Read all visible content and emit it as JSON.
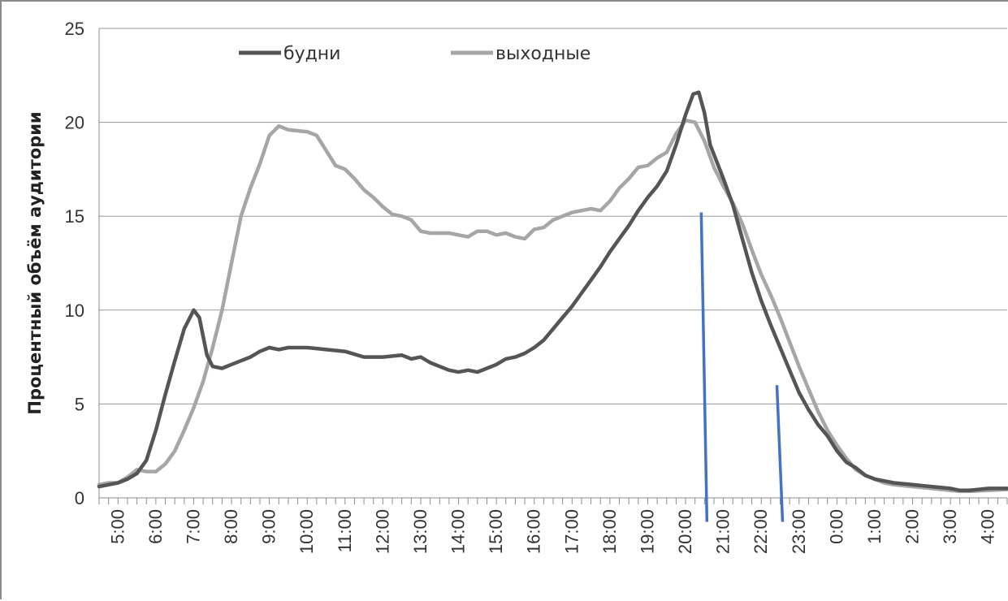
{
  "chart_data": {
    "type": "line",
    "title": "",
    "xlabel": "",
    "ylabel": "Процентный объём аудитории",
    "ylim": [
      0,
      25
    ],
    "yticks": [
      0,
      5,
      10,
      15,
      20,
      25
    ],
    "xlim": [
      5,
      29
    ],
    "xtick_labels": [
      "5:00",
      "6:00",
      "7:00",
      "8:00",
      "9:00",
      "10:00",
      "11:00",
      "12:00",
      "13:00",
      "14:00",
      "15:00",
      "16:00",
      "17:00",
      "18:00",
      "19:00",
      "20:00",
      "21:00",
      "22:00",
      "23:00",
      "0:00",
      "1:00",
      "2:00",
      "3:00",
      "4:00"
    ],
    "grid": "horizontal",
    "legend_position": "top-left",
    "series": [
      {
        "name": "будни",
        "color": "#555555",
        "points": [
          [
            5.0,
            0.6
          ],
          [
            5.25,
            0.7
          ],
          [
            5.5,
            0.8
          ],
          [
            5.75,
            1.0
          ],
          [
            6.0,
            1.3
          ],
          [
            6.25,
            2.0
          ],
          [
            6.5,
            3.6
          ],
          [
            6.75,
            5.5
          ],
          [
            7.0,
            7.3
          ],
          [
            7.25,
            9.0
          ],
          [
            7.5,
            10.0
          ],
          [
            7.65,
            9.6
          ],
          [
            7.85,
            7.6
          ],
          [
            8.0,
            7.0
          ],
          [
            8.25,
            6.9
          ],
          [
            8.5,
            7.1
          ],
          [
            8.75,
            7.3
          ],
          [
            9.0,
            7.5
          ],
          [
            9.25,
            7.8
          ],
          [
            9.5,
            8.0
          ],
          [
            9.75,
            7.9
          ],
          [
            10.0,
            8.0
          ],
          [
            10.5,
            8.0
          ],
          [
            11.0,
            7.9
          ],
          [
            11.5,
            7.8
          ],
          [
            12.0,
            7.5
          ],
          [
            12.5,
            7.5
          ],
          [
            13.0,
            7.6
          ],
          [
            13.25,
            7.4
          ],
          [
            13.5,
            7.5
          ],
          [
            13.75,
            7.2
          ],
          [
            14.0,
            7.0
          ],
          [
            14.25,
            6.8
          ],
          [
            14.5,
            6.7
          ],
          [
            14.75,
            6.8
          ],
          [
            15.0,
            6.7
          ],
          [
            15.25,
            6.9
          ],
          [
            15.5,
            7.1
          ],
          [
            15.75,
            7.4
          ],
          [
            16.0,
            7.5
          ],
          [
            16.25,
            7.7
          ],
          [
            16.5,
            8.0
          ],
          [
            16.75,
            8.4
          ],
          [
            17.0,
            9.0
          ],
          [
            17.25,
            9.6
          ],
          [
            17.5,
            10.2
          ],
          [
            17.75,
            10.9
          ],
          [
            18.0,
            11.6
          ],
          [
            18.25,
            12.3
          ],
          [
            18.5,
            13.1
          ],
          [
            18.75,
            13.8
          ],
          [
            19.0,
            14.5
          ],
          [
            19.25,
            15.3
          ],
          [
            19.5,
            16.0
          ],
          [
            19.75,
            16.6
          ],
          [
            20.0,
            17.4
          ],
          [
            20.25,
            18.8
          ],
          [
            20.5,
            20.4
          ],
          [
            20.7,
            21.5
          ],
          [
            20.85,
            21.6
          ],
          [
            21.0,
            20.5
          ],
          [
            21.15,
            18.8
          ],
          [
            21.5,
            17.0
          ],
          [
            21.75,
            15.6
          ],
          [
            22.0,
            13.8
          ],
          [
            22.25,
            12.0
          ],
          [
            22.5,
            10.5
          ],
          [
            22.75,
            9.2
          ],
          [
            23.0,
            8.0
          ],
          [
            23.25,
            6.8
          ],
          [
            23.5,
            5.6
          ],
          [
            23.75,
            4.7
          ],
          [
            24.0,
            3.9
          ],
          [
            24.25,
            3.3
          ],
          [
            24.5,
            2.5
          ],
          [
            24.75,
            1.9
          ],
          [
            25.0,
            1.6
          ],
          [
            25.25,
            1.2
          ],
          [
            25.5,
            1.0
          ],
          [
            25.75,
            0.9
          ],
          [
            26.0,
            0.8
          ],
          [
            26.5,
            0.7
          ],
          [
            27.0,
            0.6
          ],
          [
            27.5,
            0.5
          ],
          [
            27.75,
            0.4
          ],
          [
            28.0,
            0.4
          ],
          [
            28.25,
            0.45
          ],
          [
            28.5,
            0.5
          ],
          [
            29.0,
            0.5
          ]
        ]
      },
      {
        "name": "выходные",
        "color": "#a6a6a6",
        "points": [
          [
            5.0,
            0.7
          ],
          [
            5.25,
            0.8
          ],
          [
            5.5,
            0.8
          ],
          [
            5.75,
            1.1
          ],
          [
            6.0,
            1.5
          ],
          [
            6.25,
            1.4
          ],
          [
            6.5,
            1.4
          ],
          [
            6.75,
            1.8
          ],
          [
            7.0,
            2.5
          ],
          [
            7.25,
            3.6
          ],
          [
            7.5,
            4.8
          ],
          [
            7.75,
            6.2
          ],
          [
            8.0,
            8.0
          ],
          [
            8.25,
            10.0
          ],
          [
            8.5,
            12.5
          ],
          [
            8.75,
            15.0
          ],
          [
            9.0,
            16.5
          ],
          [
            9.25,
            17.8
          ],
          [
            9.5,
            19.3
          ],
          [
            9.75,
            19.8
          ],
          [
            10.0,
            19.6
          ],
          [
            10.5,
            19.5
          ],
          [
            10.75,
            19.3
          ],
          [
            11.0,
            18.5
          ],
          [
            11.25,
            17.7
          ],
          [
            11.5,
            17.5
          ],
          [
            11.75,
            17.0
          ],
          [
            12.0,
            16.4
          ],
          [
            12.25,
            16.0
          ],
          [
            12.5,
            15.5
          ],
          [
            12.75,
            15.1
          ],
          [
            13.0,
            15.0
          ],
          [
            13.25,
            14.8
          ],
          [
            13.5,
            14.2
          ],
          [
            13.75,
            14.1
          ],
          [
            14.0,
            14.1
          ],
          [
            14.25,
            14.1
          ],
          [
            14.5,
            14.0
          ],
          [
            14.75,
            13.9
          ],
          [
            15.0,
            14.2
          ],
          [
            15.25,
            14.2
          ],
          [
            15.5,
            14.0
          ],
          [
            15.75,
            14.1
          ],
          [
            16.0,
            13.9
          ],
          [
            16.25,
            13.8
          ],
          [
            16.5,
            14.3
          ],
          [
            16.75,
            14.4
          ],
          [
            17.0,
            14.8
          ],
          [
            17.25,
            15.0
          ],
          [
            17.5,
            15.2
          ],
          [
            17.75,
            15.3
          ],
          [
            18.0,
            15.4
          ],
          [
            18.25,
            15.3
          ],
          [
            18.5,
            15.8
          ],
          [
            18.75,
            16.5
          ],
          [
            19.0,
            17.0
          ],
          [
            19.25,
            17.6
          ],
          [
            19.5,
            17.7
          ],
          [
            19.75,
            18.1
          ],
          [
            20.0,
            18.4
          ],
          [
            20.25,
            19.4
          ],
          [
            20.5,
            20.1
          ],
          [
            20.75,
            20.0
          ],
          [
            21.0,
            19.0
          ],
          [
            21.25,
            17.6
          ],
          [
            21.5,
            16.6
          ],
          [
            21.75,
            15.7
          ],
          [
            22.0,
            14.6
          ],
          [
            22.25,
            13.2
          ],
          [
            22.5,
            11.9
          ],
          [
            22.75,
            10.8
          ],
          [
            23.0,
            9.6
          ],
          [
            23.25,
            8.3
          ],
          [
            23.5,
            7.0
          ],
          [
            23.75,
            5.8
          ],
          [
            24.0,
            4.6
          ],
          [
            24.25,
            3.6
          ],
          [
            24.5,
            2.8
          ],
          [
            24.75,
            2.1
          ],
          [
            25.0,
            1.5
          ],
          [
            25.25,
            1.2
          ],
          [
            25.5,
            1.0
          ],
          [
            25.75,
            0.8
          ],
          [
            26.0,
            0.7
          ],
          [
            26.5,
            0.6
          ],
          [
            27.0,
            0.5
          ],
          [
            27.5,
            0.4
          ],
          [
            27.75,
            0.35
          ],
          [
            28.0,
            0.35
          ],
          [
            28.5,
            0.4
          ],
          [
            29.0,
            0.45
          ]
        ]
      }
    ],
    "annotation_lines": [
      {
        "color": "#4472c4",
        "from": [
          21.0,
          15.2
        ],
        "to": [
          21.0,
          -0.5
        ]
      },
      {
        "color": "#4472c4",
        "from": [
          23.0,
          6.0
        ],
        "to": [
          23.0,
          -0.5
        ]
      }
    ]
  }
}
